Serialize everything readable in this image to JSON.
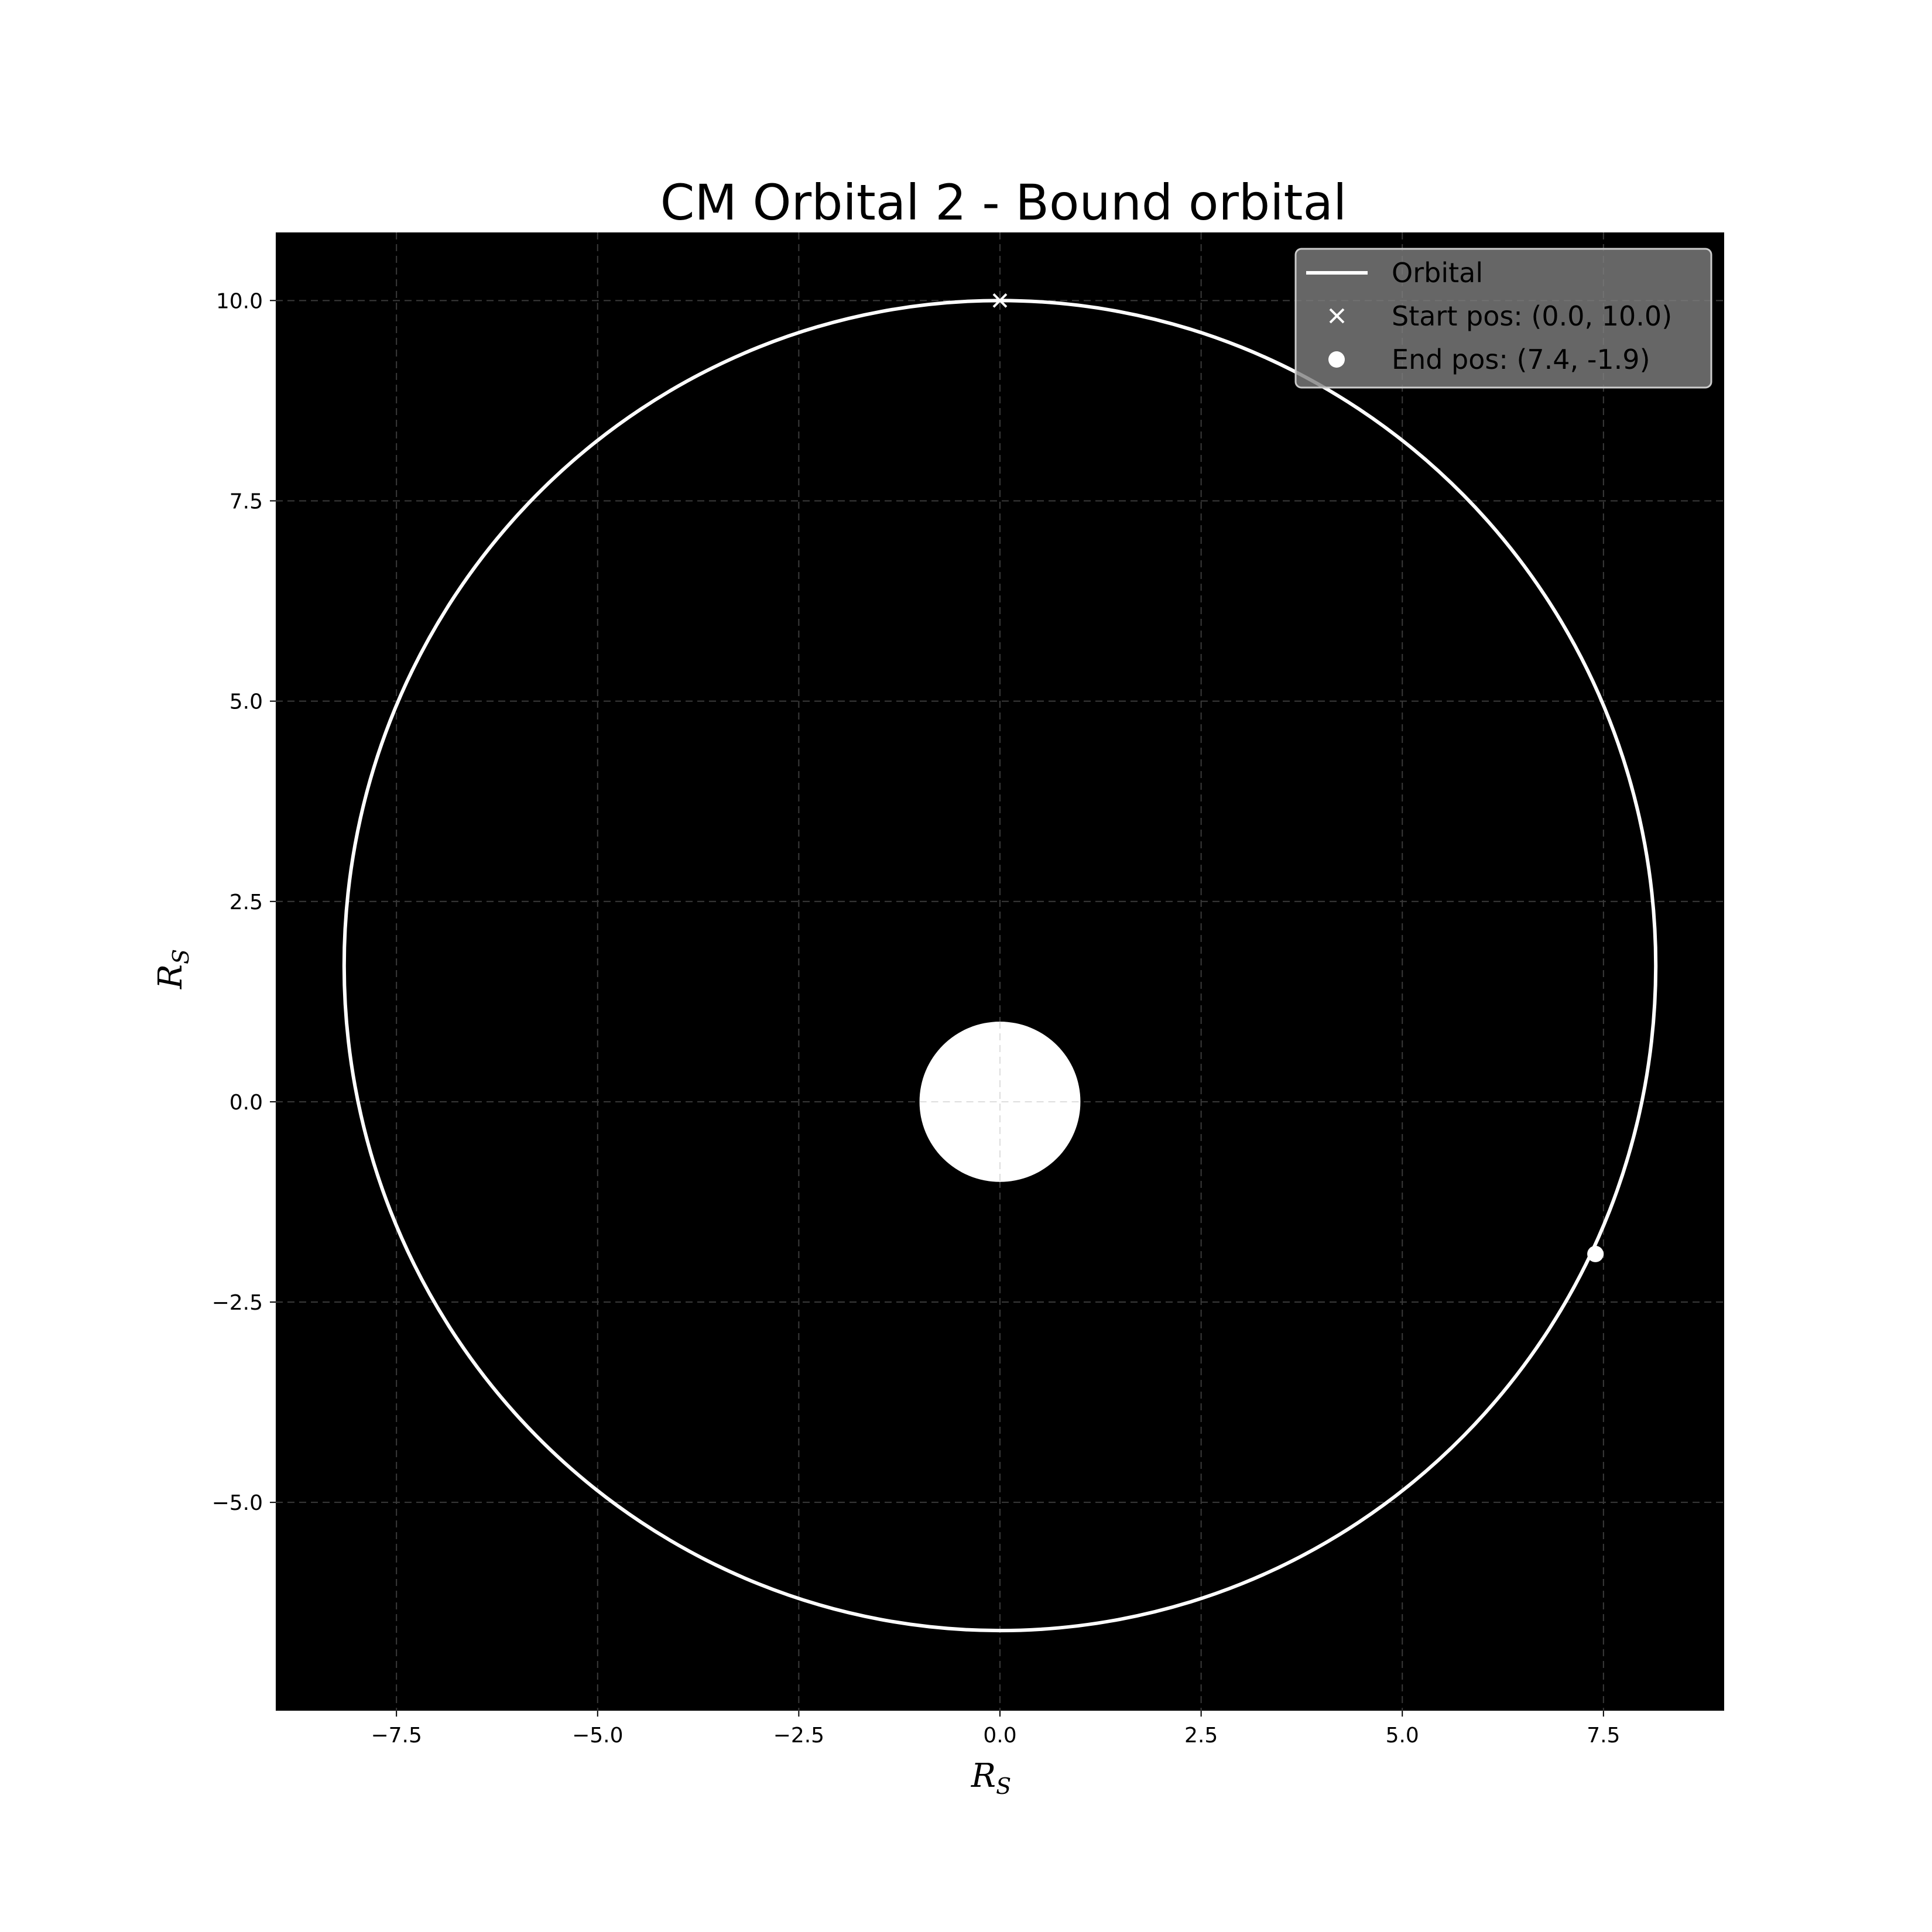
{
  "chart_data": {
    "type": "line",
    "title": "CM Orbital 2 - Bound orbital",
    "xlabel": {
      "main": "R",
      "sub": "S"
    },
    "ylabel": {
      "main": "R",
      "sub": "S"
    },
    "xlim": [
      -9.0,
      9.0
    ],
    "ylim": [
      -7.6,
      10.85
    ],
    "xticks": [
      -7.5,
      -5.0,
      -2.5,
      0.0,
      2.5,
      5.0,
      7.5
    ],
    "yticks": [
      -5.0,
      -2.5,
      0.0,
      2.5,
      5.0,
      7.5,
      10.0
    ],
    "xtick_labels": [
      "−7.5",
      "−5.0",
      "−2.5",
      "0.0",
      "2.5",
      "5.0",
      "7.5"
    ],
    "ytick_labels": [
      "−5.0",
      "−2.5",
      "0.0",
      "2.5",
      "5.0",
      "7.5",
      "10.0"
    ],
    "grid": true,
    "background": "#000000",
    "line_color": "#ffffff",
    "central_body": {
      "x": 0.0,
      "y": 0.0,
      "radius": 1.0,
      "color": "#ffffff"
    },
    "orbit": {
      "center_x": 0.0,
      "center_y": 1.7,
      "semi_axis_x": 8.15,
      "semi_axis_y": 8.3
    },
    "series": [
      {
        "name": "Orbital",
        "kind": "line"
      },
      {
        "name": "Start pos",
        "kind": "marker-x",
        "x": 0.0,
        "y": 10.0
      },
      {
        "name": "End pos",
        "kind": "marker-dot",
        "x": 7.4,
        "y": -1.9
      }
    ],
    "legend": {
      "position": "top-right",
      "entries": [
        "Orbital",
        "Start pos: (0.0, 10.0)",
        "End pos: (7.4, -1.9)"
      ]
    }
  }
}
